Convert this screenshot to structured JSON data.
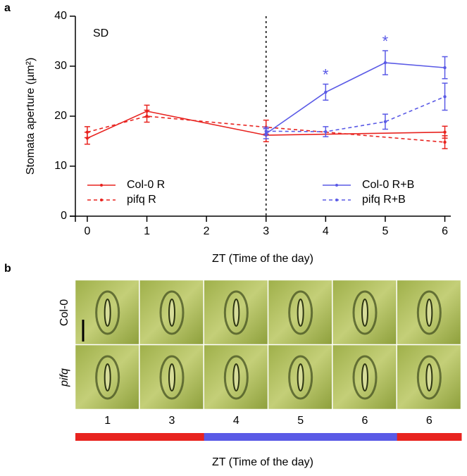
{
  "chart_data": {
    "type": "line",
    "panel_label": "a",
    "annotation": "SD",
    "ylabel": "Stomata aperture (µm²)",
    "xlabel": "ZT (Time of the day)",
    "xlim": [
      -0.2,
      6.1
    ],
    "xticks": [
      0,
      1,
      2,
      3,
      4,
      5,
      6
    ],
    "ylim": [
      0,
      40
    ],
    "yticks": [
      0,
      10,
      20,
      30,
      40
    ],
    "vline": 3,
    "legend": "bottom",
    "series": [
      {
        "name": "Col-0 R",
        "color": "#e8231f",
        "dashed": false,
        "x": [
          0,
          1,
          3,
          6
        ],
        "values": [
          15.6,
          21.0,
          16.2,
          16.8
        ],
        "errors": [
          1.2,
          1.2,
          1.3,
          1.2
        ]
      },
      {
        "name": "pifq R",
        "color": "#e8231f",
        "dashed": true,
        "x": [
          0,
          1,
          3,
          6
        ],
        "values": [
          16.8,
          20.0,
          17.8,
          14.8
        ],
        "errors": [
          1.1,
          1.2,
          1.4,
          1.3
        ]
      },
      {
        "name": "Col-0 R+B",
        "color": "#5a5ae6",
        "dashed": false,
        "x": [
          3,
          4,
          5,
          6
        ],
        "values": [
          16.5,
          24.8,
          30.7,
          29.7
        ],
        "errors": [
          1.0,
          1.6,
          2.4,
          2.2
        ]
      },
      {
        "name": "pifq R+B",
        "color": "#5a5ae6",
        "dashed": true,
        "x": [
          3,
          4,
          5,
          6
        ],
        "values": [
          17.0,
          16.9,
          18.9,
          23.9
        ],
        "errors": [
          0.8,
          1.0,
          1.5,
          2.7
        ]
      }
    ],
    "markers": [
      {
        "text": "*",
        "x": 4,
        "color": "#5a5ae6"
      },
      {
        "text": "*",
        "x": 5,
        "color": "#5a5ae6"
      }
    ]
  },
  "panel_b": {
    "panel_label": "b",
    "rows": [
      "Col-0",
      "pifq"
    ],
    "columns": [
      {
        "label": "1",
        "color": "#e8231f"
      },
      {
        "label": "3",
        "color": "#e8231f"
      },
      {
        "label": "4",
        "color": "#5a5ae6"
      },
      {
        "label": "5",
        "color": "#5a5ae6"
      },
      {
        "label": "6",
        "color": "#5a5ae6"
      },
      {
        "label": "6",
        "color": "#e8231f"
      }
    ],
    "xlabel": "ZT (Time of the day)"
  }
}
